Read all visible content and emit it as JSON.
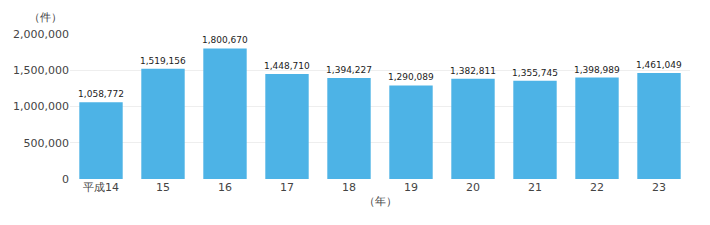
{
  "chart_data": {
    "type": "bar",
    "ylabel": "（件）",
    "xlabel": "（年）",
    "categories": [
      "平成14",
      "15",
      "16",
      "17",
      "18",
      "19",
      "20",
      "21",
      "22",
      "23"
    ],
    "values": [
      1058772,
      1519156,
      1800670,
      1448710,
      1394227,
      1290089,
      1382811,
      1355745,
      1398989,
      1461049
    ],
    "value_labels": [
      "1,058,772",
      "1,519,156",
      "1,800,670",
      "1,448,710",
      "1,394,227",
      "1,290,089",
      "1,382,811",
      "1,355,745",
      "1,398,989",
      "1,461,049"
    ],
    "data_labels": true,
    "color": "#4DB3E6",
    "ylim": [
      0,
      2000000
    ],
    "yticks": [
      0,
      {
        "value": 500000,
        "label": "500,000"
      },
      {
        "value": 1000000,
        "label": "1,000,000"
      },
      {
        "value": 1500000,
        "label": "1,500,000"
      },
      {
        "value": 2000000,
        "label": "2,000,000"
      }
    ],
    "grid": true
  }
}
